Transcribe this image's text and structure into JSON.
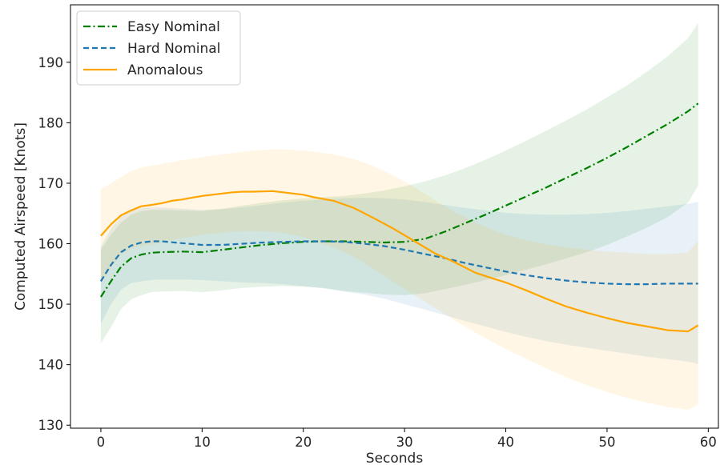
{
  "chart_data": {
    "type": "line",
    "title": "",
    "xlabel": "Seconds",
    "ylabel": "Computed Airspeed [Knots]",
    "xlim": [
      -3,
      61
    ],
    "ylim": [
      129.5,
      199.5
    ],
    "xticks": [
      0,
      10,
      20,
      30,
      40,
      50,
      60
    ],
    "yticks": [
      130,
      140,
      150,
      160,
      170,
      180,
      190
    ],
    "grid": false,
    "legend_position": "top-left",
    "series": [
      {
        "name": "Easy Nominal",
        "color": "#008000",
        "linestyle": "dashdot",
        "x": [
          0,
          1,
          2,
          3,
          4,
          5,
          6,
          8,
          10,
          12,
          14,
          16,
          18,
          20,
          22,
          24,
          26,
          28,
          30,
          32,
          34,
          36,
          38,
          40,
          42,
          44,
          46,
          48,
          50,
          52,
          54,
          56,
          58,
          59
        ],
        "y": [
          151.2,
          153.8,
          156.2,
          157.6,
          158.2,
          158.5,
          158.6,
          158.7,
          158.6,
          159.0,
          159.4,
          159.8,
          160.1,
          160.3,
          160.4,
          160.4,
          160.3,
          160.2,
          160.3,
          160.8,
          162.0,
          163.4,
          164.8,
          166.3,
          167.8,
          169.3,
          170.9,
          172.5,
          174.2,
          176.0,
          177.9,
          179.8,
          181.9,
          183.2
        ],
        "upper": [
          159.0,
          161.5,
          163.5,
          164.8,
          165.4,
          165.6,
          165.6,
          165.5,
          165.4,
          165.8,
          166.3,
          166.8,
          167.2,
          167.5,
          167.7,
          167.9,
          168.3,
          168.8,
          169.5,
          170.3,
          171.3,
          172.5,
          173.9,
          175.4,
          177.0,
          178.7,
          180.4,
          182.2,
          184.2,
          186.2,
          188.5,
          191.0,
          194.0,
          196.5
        ],
        "lower": [
          143.5,
          146.2,
          149.2,
          150.8,
          151.5,
          152.0,
          152.1,
          152.2,
          152.0,
          152.3,
          152.7,
          152.9,
          153.0,
          152.9,
          152.7,
          152.2,
          151.9,
          151.6,
          151.5,
          151.8,
          152.5,
          153.2,
          154.0,
          154.8,
          155.7,
          156.6,
          157.6,
          158.6,
          159.8,
          161.2,
          162.7,
          164.4,
          166.8,
          169.6
        ]
      },
      {
        "name": "Hard Nominal",
        "color": "#1f77b4",
        "linestyle": "dashed",
        "x": [
          0,
          1,
          2,
          3,
          4,
          5,
          6,
          8,
          10,
          12,
          14,
          16,
          18,
          20,
          22,
          24,
          26,
          28,
          30,
          32,
          34,
          36,
          38,
          40,
          42,
          44,
          46,
          48,
          50,
          52,
          54,
          56,
          58,
          59
        ],
        "y": [
          153.8,
          156.5,
          158.6,
          159.7,
          160.2,
          160.4,
          160.4,
          160.1,
          159.8,
          159.8,
          160.0,
          160.2,
          160.3,
          160.4,
          160.4,
          160.3,
          160.0,
          159.6,
          159.0,
          158.3,
          157.6,
          156.8,
          156.1,
          155.4,
          154.8,
          154.3,
          153.9,
          153.6,
          153.4,
          153.3,
          153.3,
          153.4,
          153.4,
          153.4
        ],
        "upper": [
          159.5,
          162.5,
          164.5,
          165.5,
          165.9,
          166.0,
          166.0,
          165.8,
          165.6,
          165.7,
          166.0,
          166.4,
          166.8,
          167.1,
          167.3,
          167.5,
          167.6,
          167.5,
          167.3,
          166.9,
          166.4,
          165.9,
          165.5,
          165.1,
          164.9,
          164.8,
          164.8,
          164.9,
          165.1,
          165.4,
          165.8,
          166.2,
          166.6,
          166.9
        ],
        "lower": [
          146.8,
          150.0,
          152.4,
          153.5,
          153.8,
          154.0,
          154.1,
          154.1,
          154.0,
          153.8,
          153.6,
          153.5,
          153.3,
          153.0,
          152.6,
          152.1,
          151.6,
          150.9,
          150.0,
          149.1,
          148.2,
          147.2,
          146.3,
          145.4,
          144.6,
          143.9,
          143.3,
          142.8,
          142.3,
          141.8,
          141.3,
          140.9,
          140.5,
          140.1
        ]
      },
      {
        "name": "Anomalous",
        "color": "#ffa500",
        "linestyle": "solid",
        "x": [
          0,
          1,
          2,
          3,
          4,
          5,
          6,
          7,
          8,
          10,
          12,
          13,
          14,
          15,
          17,
          18,
          20,
          21,
          23,
          25,
          27,
          29,
          31,
          33,
          35,
          37,
          39,
          40,
          42,
          44,
          46,
          48,
          50,
          52,
          54,
          56,
          57,
          58,
          59
        ],
        "y": [
          161.3,
          163.2,
          164.7,
          165.5,
          166.2,
          166.4,
          166.7,
          167.1,
          167.3,
          167.9,
          168.3,
          168.5,
          168.6,
          168.6,
          168.7,
          168.5,
          168.1,
          167.7,
          167.1,
          165.9,
          164.2,
          162.4,
          160.4,
          158.4,
          156.9,
          155.2,
          154.1,
          153.6,
          152.3,
          150.9,
          149.6,
          148.6,
          147.7,
          146.9,
          146.3,
          145.7,
          145.6,
          145.5,
          146.5
        ],
        "upper": [
          169.0,
          170.0,
          171.0,
          172.0,
          172.6,
          172.9,
          173.2,
          173.5,
          173.8,
          174.3,
          174.8,
          175.0,
          175.2,
          175.4,
          175.6,
          175.6,
          175.4,
          175.2,
          174.8,
          174.0,
          172.8,
          171.2,
          169.3,
          167.2,
          165.2,
          163.5,
          162.1,
          161.5,
          160.6,
          159.9,
          159.4,
          159.0,
          158.7,
          158.5,
          158.3,
          158.3,
          158.4,
          158.6,
          160.5
        ],
        "lower": [
          153.5,
          156.0,
          158.2,
          159.2,
          159.6,
          159.8,
          160.2,
          160.6,
          160.9,
          161.5,
          161.8,
          162.0,
          162.1,
          162.1,
          162.0,
          161.8,
          161.1,
          160.5,
          159.4,
          157.8,
          155.8,
          153.6,
          151.5,
          149.4,
          147.3,
          145.3,
          143.5,
          142.6,
          141.0,
          139.4,
          137.9,
          136.6,
          135.5,
          134.5,
          133.7,
          133.0,
          132.8,
          132.5,
          133.4
        ]
      }
    ]
  }
}
